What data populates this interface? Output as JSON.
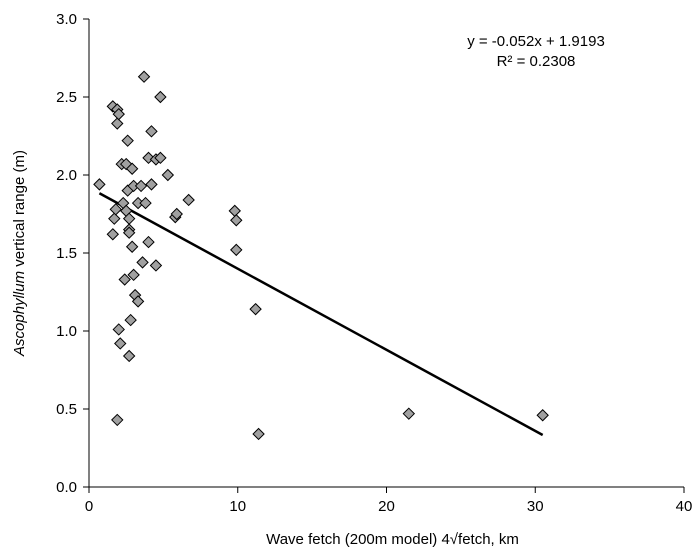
{
  "chart_data": {
    "type": "scatter",
    "xlabel": "Wave fetch (200m model) 4√fetch, km",
    "ylabel_italic": "Ascophyllum",
    "ylabel_rest": " vertical range (m)",
    "xlim": [
      0,
      40
    ],
    "ylim": [
      0.0,
      3.0
    ],
    "x_ticks": [
      0,
      10,
      20,
      30,
      40
    ],
    "x_tick_labels": [
      "0",
      "10",
      "20",
      "30",
      "40"
    ],
    "y_ticks": [
      0.0,
      0.5,
      1.0,
      1.5,
      2.0,
      2.5,
      3.0
    ],
    "y_tick_labels": [
      "0.0",
      "0.5",
      "1.0",
      "1.5",
      "2.0",
      "2.5",
      "3.0"
    ],
    "grid": false,
    "marker_color": "#a0a0a0",
    "marker_edge_color": "#000000",
    "points": [
      {
        "x": 0.7,
        "y": 1.94
      },
      {
        "x": 1.6,
        "y": 2.44
      },
      {
        "x": 1.6,
        "y": 1.62
      },
      {
        "x": 1.7,
        "y": 1.72
      },
      {
        "x": 1.8,
        "y": 1.78
      },
      {
        "x": 1.9,
        "y": 2.33
      },
      {
        "x": 1.9,
        "y": 2.42
      },
      {
        "x": 2.0,
        "y": 2.39
      },
      {
        "x": 1.9,
        "y": 0.43
      },
      {
        "x": 2.0,
        "y": 1.01
      },
      {
        "x": 2.1,
        "y": 0.92
      },
      {
        "x": 2.2,
        "y": 2.07
      },
      {
        "x": 2.3,
        "y": 1.82
      },
      {
        "x": 2.5,
        "y": 2.07
      },
      {
        "x": 2.4,
        "y": 1.33
      },
      {
        "x": 2.5,
        "y": 1.77
      },
      {
        "x": 2.6,
        "y": 1.9
      },
      {
        "x": 2.6,
        "y": 2.22
      },
      {
        "x": 2.7,
        "y": 1.72
      },
      {
        "x": 2.7,
        "y": 1.65
      },
      {
        "x": 2.7,
        "y": 1.63
      },
      {
        "x": 2.7,
        "y": 0.84
      },
      {
        "x": 2.8,
        "y": 1.07
      },
      {
        "x": 2.9,
        "y": 2.04
      },
      {
        "x": 2.9,
        "y": 1.54
      },
      {
        "x": 3.0,
        "y": 1.36
      },
      {
        "x": 3.0,
        "y": 1.93
      },
      {
        "x": 3.1,
        "y": 1.23
      },
      {
        "x": 3.3,
        "y": 1.19
      },
      {
        "x": 3.3,
        "y": 1.82
      },
      {
        "x": 3.5,
        "y": 1.93
      },
      {
        "x": 3.6,
        "y": 1.44
      },
      {
        "x": 3.7,
        "y": 2.63
      },
      {
        "x": 3.8,
        "y": 1.82
      },
      {
        "x": 4.0,
        "y": 1.57
      },
      {
        "x": 4.0,
        "y": 2.11
      },
      {
        "x": 4.2,
        "y": 2.28
      },
      {
        "x": 4.2,
        "y": 1.94
      },
      {
        "x": 4.5,
        "y": 2.1
      },
      {
        "x": 4.5,
        "y": 1.42
      },
      {
        "x": 4.8,
        "y": 2.11
      },
      {
        "x": 4.8,
        "y": 2.5
      },
      {
        "x": 5.3,
        "y": 2.0
      },
      {
        "x": 5.8,
        "y": 1.73
      },
      {
        "x": 5.9,
        "y": 1.75
      },
      {
        "x": 6.7,
        "y": 1.84
      },
      {
        "x": 9.8,
        "y": 1.77
      },
      {
        "x": 9.9,
        "y": 1.71
      },
      {
        "x": 9.9,
        "y": 1.52
      },
      {
        "x": 11.2,
        "y": 1.14
      },
      {
        "x": 11.4,
        "y": 0.34
      },
      {
        "x": 21.5,
        "y": 0.47
      },
      {
        "x": 30.5,
        "y": 0.46
      }
    ],
    "trendline": {
      "slope": -0.052,
      "intercept": 1.9193,
      "x_range": [
        0.7,
        30.5
      ],
      "color": "#000000",
      "equation": "y = -0.052x + 1.9193",
      "r_squared": "R² = 0.2308"
    }
  }
}
